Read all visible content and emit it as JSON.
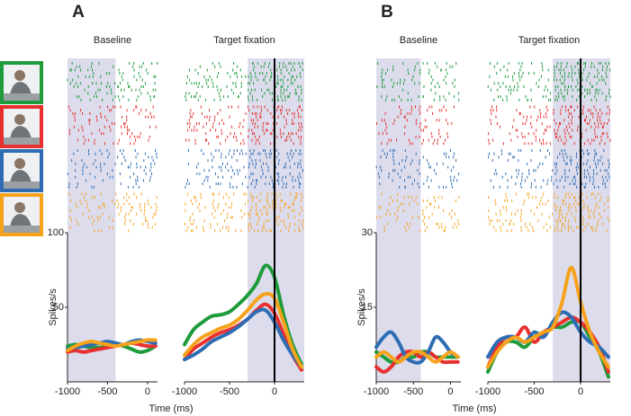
{
  "chart_data": [
    {
      "type": "line",
      "panel": "A",
      "title": "Baseline",
      "ylabel": "Spikes/s",
      "xlabel": "Time (ms)",
      "x": [
        -1000,
        -900,
        -800,
        -700,
        -600,
        -500,
        -400,
        -300,
        -200,
        -100,
        0,
        100
      ],
      "series": [
        {
          "color": "#1e9b3a",
          "values": [
            24,
            25,
            24,
            23,
            23,
            24,
            25,
            24,
            22,
            20,
            21,
            24
          ]
        },
        {
          "color": "#e8302f",
          "values": [
            20,
            21,
            20,
            21,
            22,
            23,
            24,
            25,
            26,
            25,
            24,
            24
          ]
        },
        {
          "color": "#2e6db4",
          "values": [
            22,
            23,
            24,
            25,
            26,
            27,
            26,
            25,
            27,
            28,
            27,
            26
          ]
        },
        {
          "color": "#f7a21b",
          "values": [
            21,
            24,
            26,
            27,
            26,
            25,
            24,
            25,
            26,
            27,
            28,
            28
          ]
        }
      ],
      "xlim": [
        -1000,
        125
      ],
      "ylim": [
        0,
        100
      ],
      "xticks": [
        -1000,
        -500,
        0
      ],
      "yticks": [
        50,
        100
      ],
      "shade": [
        -1000,
        -400
      ]
    },
    {
      "type": "line",
      "title": "Target fixation",
      "x": [
        -1000,
        -900,
        -800,
        -700,
        -600,
        -500,
        -400,
        -300,
        -200,
        -100,
        0,
        100,
        200,
        300
      ],
      "series": [
        {
          "color": "#1e9b3a",
          "values": [
            25,
            35,
            40,
            44,
            45,
            47,
            52,
            58,
            66,
            78,
            70,
            45,
            25,
            12
          ]
        },
        {
          "color": "#e8302f",
          "values": [
            15,
            22,
            26,
            30,
            33,
            35,
            38,
            42,
            48,
            52,
            46,
            32,
            18,
            8
          ]
        },
        {
          "color": "#2e6db4",
          "values": [
            15,
            18,
            22,
            27,
            30,
            33,
            37,
            42,
            47,
            48,
            40,
            28,
            18,
            10
          ]
        },
        {
          "color": "#f7a21b",
          "values": [
            18,
            25,
            30,
            33,
            36,
            38,
            42,
            48,
            55,
            59,
            56,
            40,
            22,
            10
          ]
        }
      ],
      "xlim": [
        -1000,
        330
      ],
      "ylim": [
        0,
        100
      ],
      "xticks": [
        -1000,
        -500,
        0
      ],
      "shade": [
        -300,
        330
      ],
      "event_line": 0
    },
    {
      "type": "line",
      "panel": "B",
      "title": "Baseline",
      "ylabel": "Spikes/s",
      "xlabel": "Time (ms)",
      "x": [
        -1000,
        -900,
        -800,
        -700,
        -600,
        -500,
        -400,
        -300,
        -200,
        -100,
        0,
        100
      ],
      "series": [
        {
          "color": "#1e9b3a",
          "values": [
            6,
            5,
            4,
            4,
            5,
            5,
            6,
            6,
            5,
            5,
            5,
            5
          ]
        },
        {
          "color": "#e8302f",
          "values": [
            3,
            2,
            3,
            5,
            6,
            6,
            5,
            6,
            5,
            4,
            4,
            4
          ]
        },
        {
          "color": "#2e6db4",
          "values": [
            7,
            9,
            10,
            8,
            5,
            4,
            4,
            6,
            9,
            8,
            6,
            5
          ]
        },
        {
          "color": "#f7a21b",
          "values": [
            5,
            6,
            5,
            4,
            5,
            6,
            6,
            5,
            4,
            5,
            6,
            5
          ]
        }
      ],
      "xlim": [
        -1000,
        140
      ],
      "ylim": [
        0,
        30
      ],
      "xticks": [
        -1000,
        -500,
        0
      ],
      "yticks": [
        15,
        30
      ],
      "shade": [
        -1000,
        -400
      ]
    },
    {
      "type": "line",
      "title": "Target fixation",
      "x": [
        -1000,
        -900,
        -800,
        -700,
        -600,
        -500,
        -400,
        -300,
        -200,
        -100,
        0,
        100,
        200,
        300
      ],
      "series": [
        {
          "color": "#1e9b3a",
          "values": [
            2,
            6,
            8,
            8,
            7,
            9,
            10,
            11,
            11,
            12,
            12,
            9,
            6,
            1
          ]
        },
        {
          "color": "#e8302f",
          "values": [
            3,
            7,
            9,
            9,
            11,
            8,
            10,
            11,
            12,
            13,
            12,
            10,
            7,
            2
          ]
        },
        {
          "color": "#2e6db4",
          "values": [
            5,
            8,
            9,
            9,
            8,
            10,
            9,
            12,
            14,
            13,
            10,
            8,
            7,
            5
          ]
        },
        {
          "color": "#f7a21b",
          "values": [
            3,
            6,
            8,
            9,
            8,
            9,
            10,
            11,
            16,
            23,
            16,
            10,
            6,
            3
          ]
        }
      ],
      "xlim": [
        -1000,
        320
      ],
      "ylim": [
        0,
        30
      ],
      "xticks": [
        -1000,
        -500,
        0
      ],
      "shade": [
        -300,
        320
      ],
      "event_line": 0
    }
  ]
}
